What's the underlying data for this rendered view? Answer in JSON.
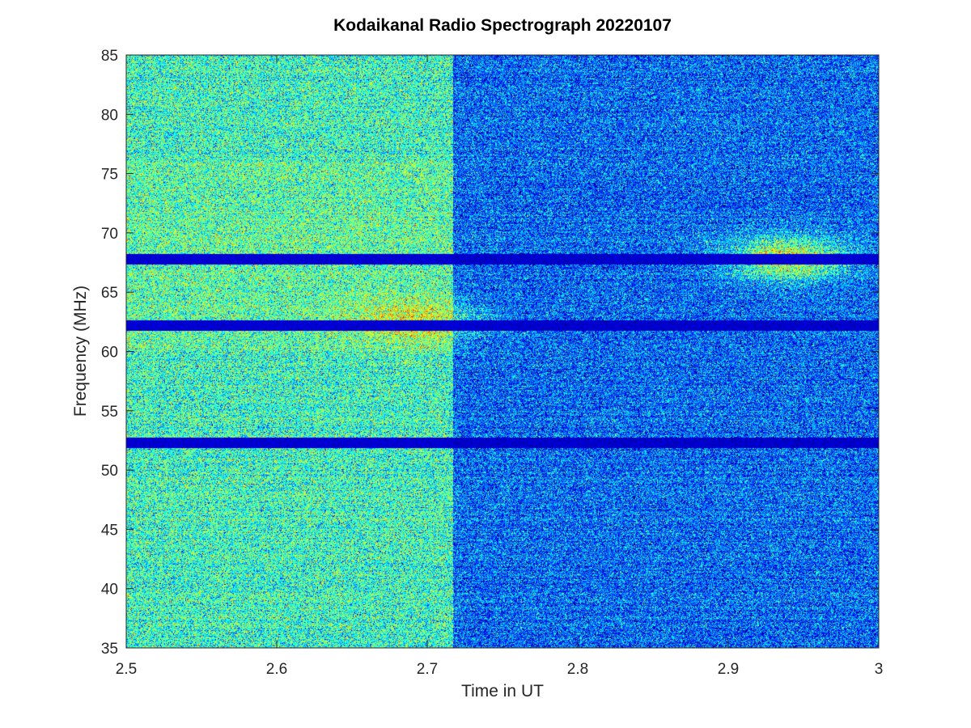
{
  "chart_data": {
    "type": "heatmap",
    "title": "Kodaikanal Radio Spectrograph  20220107",
    "xlabel": "Time in UT",
    "ylabel": "Frequency (MHz)",
    "xlim": [
      2.5,
      3.0
    ],
    "ylim": [
      35,
      85
    ],
    "xticks": [
      2.5,
      2.6,
      2.7,
      2.8,
      2.9,
      3.0
    ],
    "xtick_labels": [
      "2.5",
      "2.6",
      "2.7",
      "2.8",
      "2.9",
      "3"
    ],
    "yticks": [
      35,
      40,
      45,
      50,
      55,
      60,
      65,
      70,
      75,
      80,
      85
    ],
    "ytick_labels": [
      "35",
      "40",
      "45",
      "50",
      "55",
      "60",
      "65",
      "70",
      "75",
      "80",
      "85"
    ],
    "colormap": "jet",
    "colors": {
      "low": "#00007f",
      "mid_low": "#0046ff",
      "mid": "#00b4ff",
      "high": "#b4ff4c",
      "background": "#ffffff",
      "axis": "#262626"
    },
    "intensity_regions": [
      {
        "t_start": 2.5,
        "t_end": 2.717,
        "level": 0.42
      },
      {
        "t_start": 2.717,
        "t_end": 3.0,
        "level": 0.22
      }
    ],
    "horizontal_dark_bands_mhz": [
      52.3,
      62.2,
      67.8
    ],
    "bright_features": [
      {
        "t": 2.69,
        "f": 62.5,
        "level": 0.62
      },
      {
        "t": 2.94,
        "f": 67.8,
        "level": 0.7
      }
    ]
  }
}
